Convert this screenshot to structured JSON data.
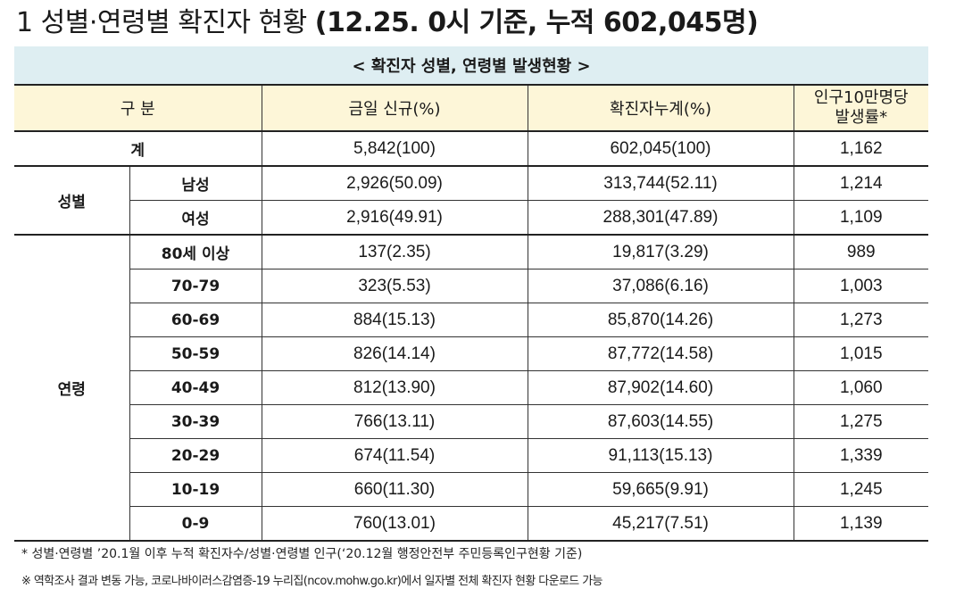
{
  "title": {
    "number": "1",
    "main": "성별·연령별 확진자 현황",
    "bold": "(12.25. 0시 기준, 누적 602,045명)"
  },
  "table": {
    "caption": "< 확진자 성별, 연령별 발생현황 >",
    "headers": {
      "category": "구 분",
      "today_new": "금일 신규(%)",
      "cumulative": "확진자누계(%)",
      "rate_line1": "인구10만명당",
      "rate_line2": "발생률*"
    },
    "total": {
      "label": "계",
      "today_new": "5,842(100)",
      "cumulative": "602,045(100)",
      "rate": "1,162"
    },
    "gender": {
      "label": "성별",
      "rows": [
        {
          "label": "남성",
          "today_new": "2,926(50.09)",
          "cumulative": "313,744(52.11)",
          "rate": "1,214"
        },
        {
          "label": "여성",
          "today_new": "2,916(49.91)",
          "cumulative": "288,301(47.89)",
          "rate": "1,109"
        }
      ]
    },
    "age": {
      "label": "연령",
      "rows": [
        {
          "label": "80세 이상",
          "today_new": "137(2.35)",
          "cumulative": "19,817(3.29)",
          "rate": "989"
        },
        {
          "label": "70-79",
          "today_new": "323(5.53)",
          "cumulative": "37,086(6.16)",
          "rate": "1,003"
        },
        {
          "label": "60-69",
          "today_new": "884(15.13)",
          "cumulative": "85,870(14.26)",
          "rate": "1,273"
        },
        {
          "label": "50-59",
          "today_new": "826(14.14)",
          "cumulative": "87,772(14.58)",
          "rate": "1,015"
        },
        {
          "label": "40-49",
          "today_new": "812(13.90)",
          "cumulative": "87,902(14.60)",
          "rate": "1,060"
        },
        {
          "label": "30-39",
          "today_new": "766(13.11)",
          "cumulative": "87,603(14.55)",
          "rate": "1,275"
        },
        {
          "label": "20-29",
          "today_new": "674(11.54)",
          "cumulative": "91,113(15.13)",
          "rate": "1,339"
        },
        {
          "label": "10-19",
          "today_new": "660(11.30)",
          "cumulative": "59,665(9.91)",
          "rate": "1,245"
        },
        {
          "label": "0-9",
          "today_new": "760(13.01)",
          "cumulative": "45,217(7.51)",
          "rate": "1,139"
        }
      ]
    }
  },
  "notes": {
    "note1": "* 성별·연령별 ’20.1월 이후 누적 확진자수/성별·연령별 인구(‘20.12월 행정안전부 주민등록인구현황 기준)",
    "note2": "※  역학조사 결과 변동 가능, 코로나바이러스감염증-19 누리집(ncov.mohw.go.kr)에서 일자별 전체 확진자 현황 다운로드 가능"
  }
}
